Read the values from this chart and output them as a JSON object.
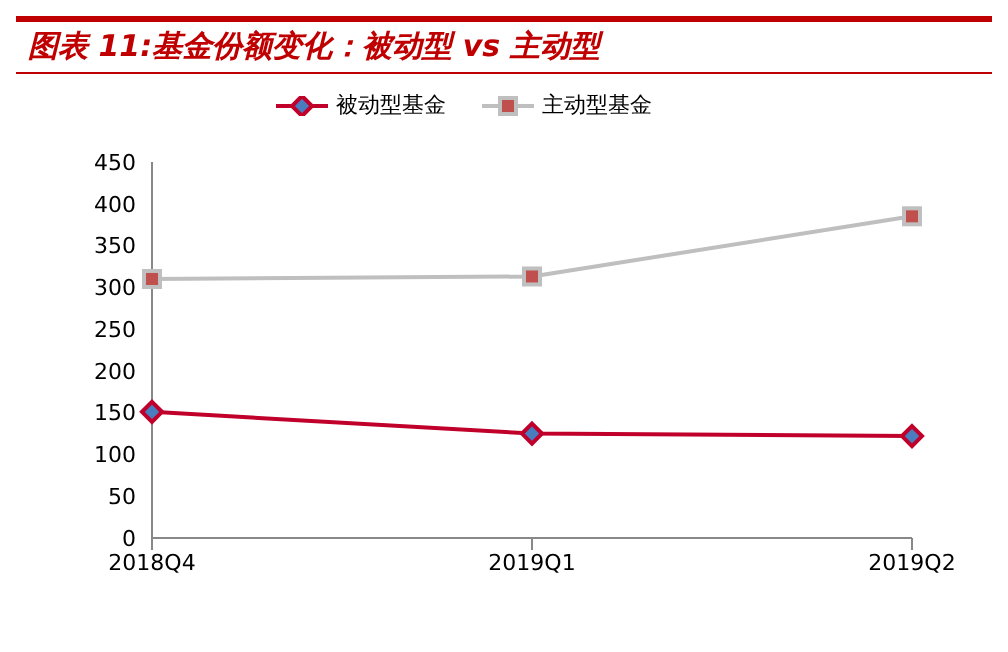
{
  "chart_data": {
    "type": "line",
    "title": "图表 11:基金份额变化：被动型 vs 主动型",
    "categories": [
      "2018Q4",
      "2019Q1",
      "2019Q2"
    ],
    "series": [
      {
        "name": "被动型基金",
        "color": "#c0002b",
        "marker": "diamond",
        "values": [
          151,
          125,
          122
        ]
      },
      {
        "name": "主动型基金",
        "color": "#bfbfbf",
        "marker": "square",
        "values": [
          310,
          313,
          385
        ]
      }
    ],
    "ylim": [
      0,
      450
    ],
    "yticks": [
      0,
      50,
      100,
      150,
      200,
      250,
      300,
      350,
      400,
      450
    ],
    "grid": false,
    "legend": "top"
  }
}
